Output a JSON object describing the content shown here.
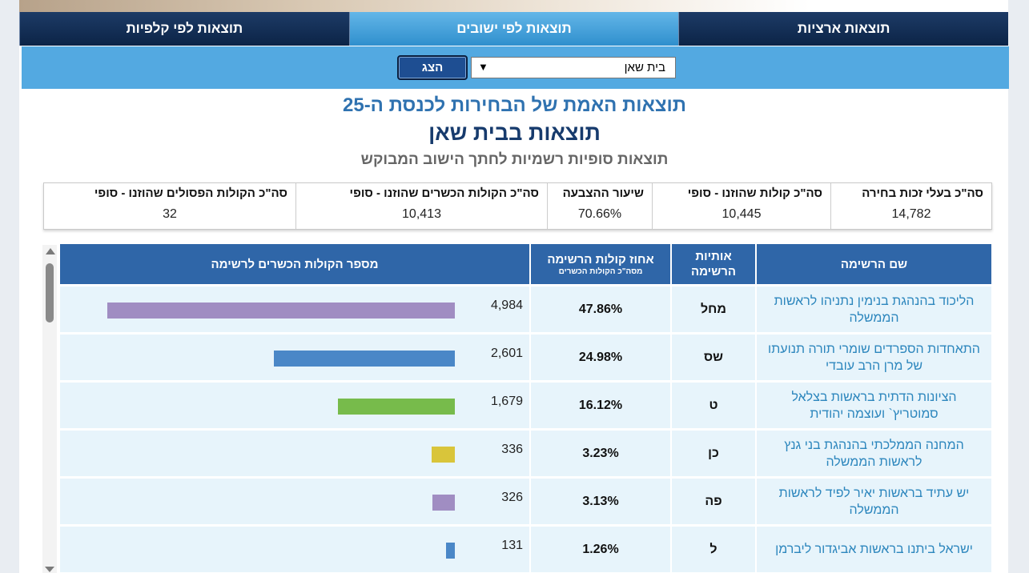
{
  "tabs": [
    {
      "label": "תוצאות ארציות",
      "active": false
    },
    {
      "label": "תוצאות לפי ישובים",
      "active": true
    },
    {
      "label": "תוצאות לפי קלפיות",
      "active": false
    }
  ],
  "filter": {
    "selected_town": "בית שאן",
    "dropdown_icon": "▼",
    "show_button": "הצג"
  },
  "titles": {
    "main": "תוצאות האמת של הבחירות לכנסת ה-25",
    "town": "תוצאות בבית שאן",
    "subtitle": "תוצאות סופיות רשמיות לחתך הישוב המבוקש"
  },
  "summary": [
    {
      "label": "סה\"כ בעלי זכות בחירה",
      "value": "14,782"
    },
    {
      "label": "סה\"כ קולות שהוזנו - סופי",
      "value": "10,445"
    },
    {
      "label": "שיעור ההצבעה",
      "value": "70.66%"
    },
    {
      "label": "סה\"כ הקולות הכשרים שהוזנו - סופי",
      "value": "10,413"
    },
    {
      "label": "סה\"כ הקולות הפסולים שהוזנו - סופי",
      "value": "32"
    }
  ],
  "table": {
    "headers": {
      "name": "שם הרשימה",
      "letters_line1": "אותיות",
      "letters_line2": "הרשימה",
      "pct": "אחוז קולות הרשימה",
      "pct_sub": "מסה\"כ הקולות הכשרים",
      "votes": "מספר הקולות הכשרים לרשימה"
    },
    "rows": [
      {
        "name": "הליכוד בהנהגת בנימין נתניהו לראשות הממשלה",
        "letters": "מחל",
        "pct": "47.86%",
        "votes": "4,984",
        "votes_num": 4984,
        "color": "#a08dc2"
      },
      {
        "name": "התאחדות הספרדים שומרי תורה תנועתו של מרן הרב עובדי",
        "letters": "שס",
        "pct": "24.98%",
        "votes": "2,601",
        "votes_num": 2601,
        "color": "#4a87c7"
      },
      {
        "name": "הציונות הדתית בראשות בצלאל סמוטריץ` ועוצמה יהודית",
        "letters": "ט",
        "pct": "16.12%",
        "votes": "1,679",
        "votes_num": 1679,
        "color": "#77bb4b"
      },
      {
        "name": "המחנה הממלכתי בהנהגת בני גנץ לראשות הממשלה",
        "letters": "כן",
        "pct": "3.23%",
        "votes": "336",
        "votes_num": 336,
        "color": "#d9c53a"
      },
      {
        "name": "יש עתיד בראשות יאיר לפיד לראשות הממשלה",
        "letters": "פה",
        "pct": "3.13%",
        "votes": "326",
        "votes_num": 326,
        "color": "#a08dc2"
      },
      {
        "name": "ישראל ביתנו בראשות אביגדור ליברמן",
        "letters": "ל",
        "pct": "1.26%",
        "votes": "131",
        "votes_num": 131,
        "color": "#4a87c7"
      }
    ]
  }
}
